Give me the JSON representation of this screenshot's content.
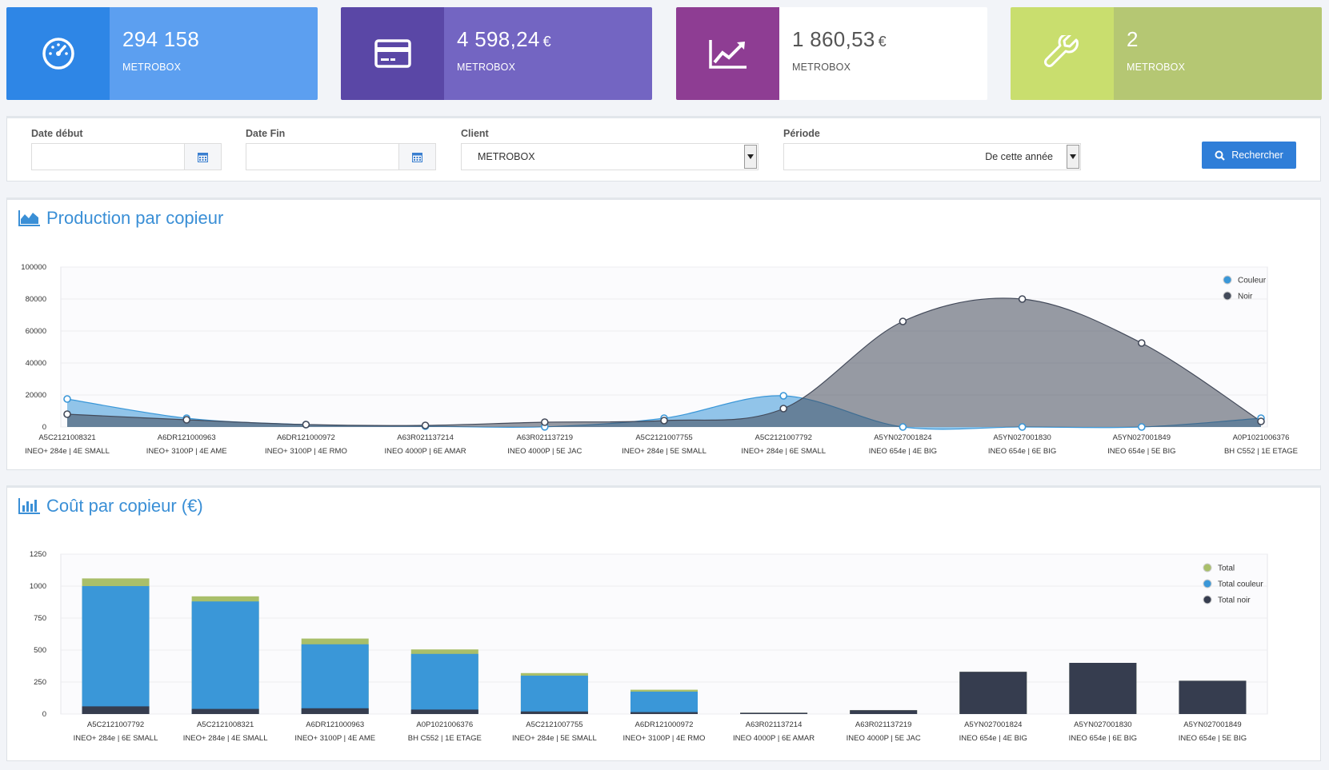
{
  "stats": [
    {
      "value": "294 158",
      "currency": "",
      "label": "METROBOX",
      "icon": "dashboard-gauge-icon"
    },
    {
      "value": "4 598,24",
      "currency": "€",
      "label": "METROBOX",
      "icon": "credit-card-icon"
    },
    {
      "value": "1 860,53",
      "currency": "€",
      "label": "METROBOX",
      "icon": "trend-chart-icon"
    },
    {
      "value": "2",
      "currency": "",
      "label": "METROBOX",
      "icon": "wrench-icon"
    }
  ],
  "filters": {
    "date_debut_label": "Date début",
    "date_debut_value": "",
    "date_fin_label": "Date Fin",
    "date_fin_value": "",
    "client_label": "Client",
    "client_value": "METROBOX",
    "periode_label": "Période",
    "periode_value": "De cette année",
    "search_label": "Rechercher"
  },
  "production": {
    "title": "Production par copieur"
  },
  "cost": {
    "title": "Coût par copieur (€)"
  },
  "chart_data": [
    {
      "type": "area",
      "title": "Production par copieur",
      "categories": [
        [
          "A5C2121008321",
          "INEO+ 284e | 4E SMALL"
        ],
        [
          "A6DR121000963",
          "INEO+ 3100P | 4E AME"
        ],
        [
          "A6DR121000972",
          "INEO+ 3100P | 4E RMO"
        ],
        [
          "A63R021137214",
          "INEO 4000P | 6E AMAR"
        ],
        [
          "A63R021137219",
          "INEO 4000P | 5E JAC"
        ],
        [
          "A5C2121007755",
          "INEO+ 284e | 5E SMALL"
        ],
        [
          "A5C2121007792",
          "INEO+ 284e | 6E SMALL"
        ],
        [
          "A5YN027001824",
          "INEO 654e | 4E BIG"
        ],
        [
          "A5YN027001830",
          "INEO 654e | 6E BIG"
        ],
        [
          "A5YN027001849",
          "INEO 654e | 5E BIG"
        ],
        [
          "A0P1021006376",
          "BH C552 | 1E ETAGE"
        ]
      ],
      "series": [
        {
          "name": "Couleur",
          "color": "#3a97d8",
          "values": [
            17500,
            5500,
            1500,
            500,
            100,
            5500,
            19500,
            0,
            0,
            0,
            5500
          ]
        },
        {
          "name": "Noir",
          "color": "#434a5a",
          "values": [
            8000,
            4500,
            1500,
            1000,
            3000,
            4000,
            11500,
            66000,
            80000,
            52500,
            3500
          ]
        }
      ],
      "ylim": [
        0,
        100000
      ],
      "yticks": [
        0,
        20000,
        40000,
        60000,
        80000,
        100000
      ],
      "legend": "top-right",
      "grid": true
    },
    {
      "type": "bar",
      "title": "Coût par copieur (€)",
      "categories": [
        [
          "A5C2121007792",
          "INEO+ 284e | 6E SMALL"
        ],
        [
          "A5C2121008321",
          "INEO+ 284e | 4E SMALL"
        ],
        [
          "A6DR121000963",
          "INEO+ 3100P | 4E AME"
        ],
        [
          "A0P1021006376",
          "BH C552 | 1E ETAGE"
        ],
        [
          "A5C2121007755",
          "INEO+ 284e | 5E SMALL"
        ],
        [
          "A6DR121000972",
          "INEO+ 3100P | 4E RMO"
        ],
        [
          "A63R021137214",
          "INEO 4000P | 6E AMAR"
        ],
        [
          "A63R021137219",
          "INEO 4000P | 5E JAC"
        ],
        [
          "A5YN027001824",
          "INEO 654e | 4E BIG"
        ],
        [
          "A5YN027001830",
          "INEO 654e | 6E BIG"
        ],
        [
          "A5YN027001849",
          "INEO 654e | 5E BIG"
        ]
      ],
      "series": [
        {
          "name": "Total",
          "color": "#a9bf6a",
          "values": [
            1060,
            920,
            590,
            505,
            320,
            190,
            10,
            30,
            330,
            400,
            260
          ]
        },
        {
          "name": "Total couleur",
          "color": "#3a97d8",
          "values": [
            1000,
            880,
            545,
            470,
            300,
            175,
            0,
            0,
            0,
            0,
            0
          ]
        },
        {
          "name": "Total noir",
          "color": "#363d4f",
          "values": [
            60,
            40,
            45,
            35,
            20,
            15,
            10,
            30,
            330,
            400,
            260
          ]
        }
      ],
      "ylim": [
        0,
        1250
      ],
      "yticks": [
        0,
        250,
        500,
        750,
        1000,
        1250
      ],
      "legend": "top-right",
      "grid": true
    }
  ]
}
